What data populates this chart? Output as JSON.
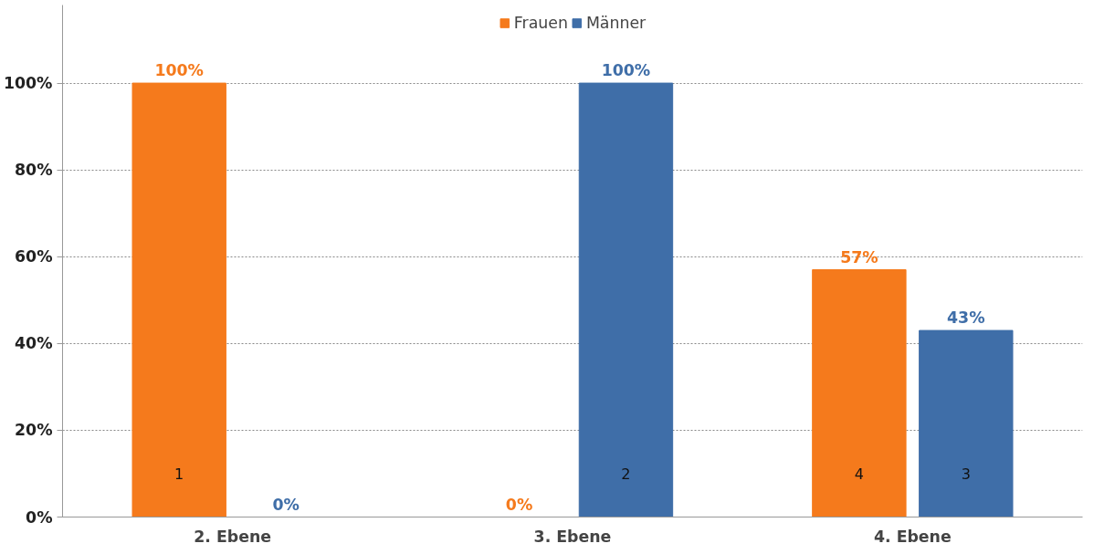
{
  "chart_data": {
    "type": "bar",
    "categories": [
      "2. Ebene",
      "3. Ebene",
      "4. Ebene"
    ],
    "series": [
      {
        "name": "Frauen",
        "color": "#f57a1c",
        "values": [
          100,
          0,
          57
        ],
        "value_labels": [
          "100%",
          "0%",
          "57%"
        ]
      },
      {
        "name": "Männer",
        "color": "#3f6ea8",
        "values": [
          0,
          100,
          43
        ],
        "value_labels": [
          "0%",
          "100%",
          "43%"
        ]
      }
    ],
    "annotations": [
      "1",
      "2",
      "4",
      "3"
    ],
    "ylim": [
      0,
      118
    ],
    "yticks": [
      {
        "value": 0,
        "label": "0%"
      },
      {
        "value": 20,
        "label": "20%"
      },
      {
        "value": 40,
        "label": "40%"
      },
      {
        "value": 60,
        "label": "60%"
      },
      {
        "value": 80,
        "label": "80%"
      },
      {
        "value": 100,
        "label": "100%"
      }
    ],
    "grid": "y",
    "legend": "top"
  }
}
